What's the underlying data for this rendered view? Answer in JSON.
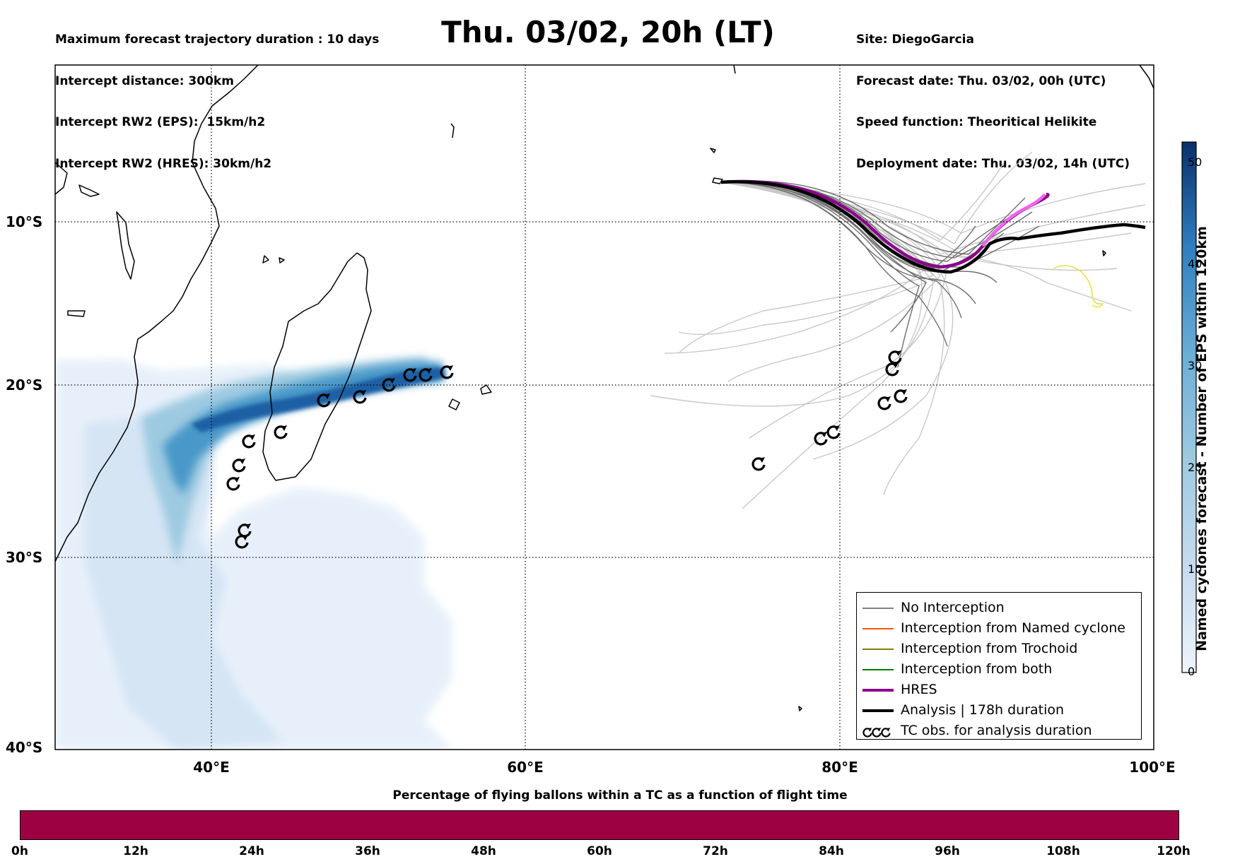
{
  "header_left": [
    "Maximum forecast trajectory duration : 10 days",
    "Intercept distance: 300km",
    "Intercept RW2 (EPS):  15km/h2",
    "Intercept RW2 (HRES): 30km/h2"
  ],
  "title": "Thu. 03/02, 20h (LT)",
  "header_right": [
    "Site: DiegoGarcia",
    "Forecast date: Thu. 03/02, 00h (UTC)",
    "Speed function: Theoritical Helikite",
    "Deployment date: Thu. 03/02, 14h (UTC)"
  ],
  "map": {
    "lon_ticks": [
      "40°E",
      "60°E",
      "80°E",
      "100°E"
    ],
    "lat_ticks": [
      "10°S",
      "20°S",
      "30°S",
      "40°S"
    ]
  },
  "legend": {
    "items": [
      {
        "label": "No Interception",
        "color": "#808080",
        "style": "thin"
      },
      {
        "label": "Interception from Named cyclone",
        "color": "#ff5500",
        "style": "thin"
      },
      {
        "label": "Interception from Trochoid",
        "color": "#808000",
        "style": "thin"
      },
      {
        "label": "Interception from both",
        "color": "#008000",
        "style": "thin"
      },
      {
        "label": "HRES",
        "color": "#8b008b",
        "style": "thick"
      },
      {
        "label": "Analysis | 178h duration",
        "color": "#000000",
        "style": "thick"
      },
      {
        "label": "TC obs. for analysis duration",
        "color": "#000000",
        "style": "tc-symbol"
      }
    ]
  },
  "colorbar": {
    "title": "Named cyclones forecast - Number of EPS within 120km",
    "ticks": [
      "0",
      "10",
      "20",
      "30",
      "40",
      "50"
    ],
    "colors": [
      "#eef4fb",
      "#c6dbef",
      "#9ecae1",
      "#6baed6",
      "#2f7fc1",
      "#08306b"
    ]
  },
  "bottom_bar": {
    "title": "Percentage of flying ballons within a TC as a function of flight time",
    "ticks": [
      "0h",
      "12h",
      "24h",
      "36h",
      "48h",
      "60h",
      "72h",
      "84h",
      "96h",
      "108h",
      "120h"
    ],
    "color": "#9e0142"
  }
}
